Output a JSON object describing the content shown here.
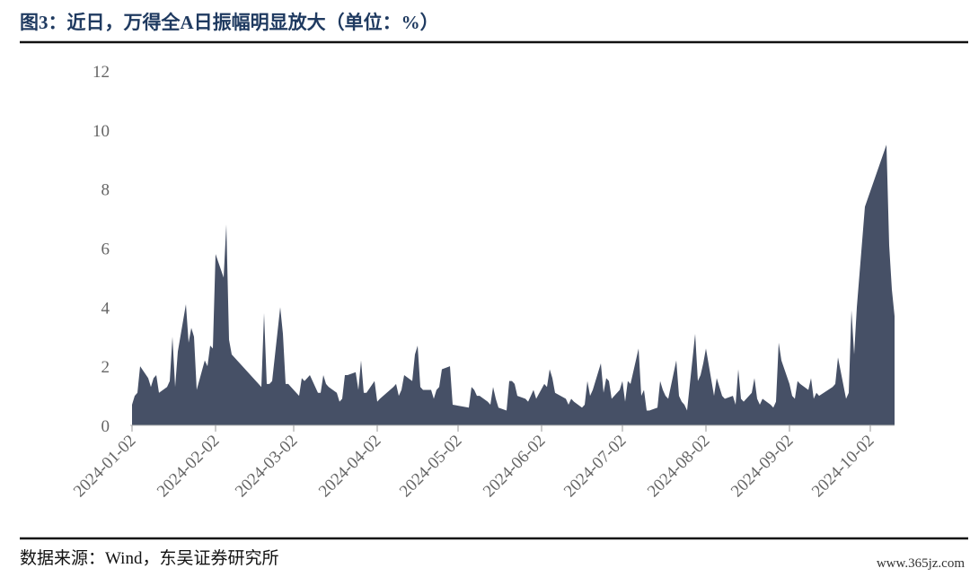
{
  "chart_data": {
    "type": "area",
    "title": "图3：近日，万得全A日振幅明显放大（单位：%）",
    "source": "数据来源：Wind，东吴证券研究所",
    "watermark": "www.365jz.com",
    "color": "#465066",
    "x": [
      "2024-01-02",
      "2024-01-03",
      "2024-01-04",
      "2024-01-05",
      "2024-01-08",
      "2024-01-09",
      "2024-01-10",
      "2024-01-11",
      "2024-01-12",
      "2024-01-15",
      "2024-01-16",
      "2024-01-17",
      "2024-01-18",
      "2024-01-19",
      "2024-01-22",
      "2024-01-23",
      "2024-01-24",
      "2024-01-25",
      "2024-01-26",
      "2024-01-29",
      "2024-01-30",
      "2024-01-31",
      "2024-02-01",
      "2024-02-02",
      "2024-02-05",
      "2024-02-06",
      "2024-02-07",
      "2024-02-08",
      "2024-02-19",
      "2024-02-20",
      "2024-02-21",
      "2024-02-22",
      "2024-02-23",
      "2024-02-26",
      "2024-02-27",
      "2024-02-28",
      "2024-02-29",
      "2024-03-01",
      "2024-03-04",
      "2024-03-05",
      "2024-03-06",
      "2024-03-07",
      "2024-03-08",
      "2024-03-11",
      "2024-03-12",
      "2024-03-13",
      "2024-03-14",
      "2024-03-15",
      "2024-03-18",
      "2024-03-19",
      "2024-03-20",
      "2024-03-21",
      "2024-03-22",
      "2024-03-25",
      "2024-03-26",
      "2024-03-27",
      "2024-03-28",
      "2024-03-29",
      "2024-04-01",
      "2024-04-02",
      "2024-04-03",
      "2024-04-08",
      "2024-04-09",
      "2024-04-10",
      "2024-04-11",
      "2024-04-12",
      "2024-04-15",
      "2024-04-16",
      "2024-04-17",
      "2024-04-18",
      "2024-04-19",
      "2024-04-22",
      "2024-04-23",
      "2024-04-24",
      "2024-04-25",
      "2024-04-26",
      "2024-04-29",
      "2024-04-30",
      "2024-05-06",
      "2024-05-07",
      "2024-05-08",
      "2024-05-09",
      "2024-05-10",
      "2024-05-13",
      "2024-05-14",
      "2024-05-15",
      "2024-05-16",
      "2024-05-17",
      "2024-05-20",
      "2024-05-21",
      "2024-05-22",
      "2024-05-23",
      "2024-05-24",
      "2024-05-27",
      "2024-05-28",
      "2024-05-29",
      "2024-05-30",
      "2024-05-31",
      "2024-06-03",
      "2024-06-04",
      "2024-06-05",
      "2024-06-06",
      "2024-06-07",
      "2024-06-11",
      "2024-06-12",
      "2024-06-13",
      "2024-06-14",
      "2024-06-17",
      "2024-06-18",
      "2024-06-19",
      "2024-06-20",
      "2024-06-21",
      "2024-06-24",
      "2024-06-25",
      "2024-06-26",
      "2024-06-27",
      "2024-06-28",
      "2024-07-01",
      "2024-07-02",
      "2024-07-03",
      "2024-07-04",
      "2024-07-05",
      "2024-07-08",
      "2024-07-09",
      "2024-07-10",
      "2024-07-11",
      "2024-07-12",
      "2024-07-15",
      "2024-07-16",
      "2024-07-17",
      "2024-07-18",
      "2024-07-19",
      "2024-07-22",
      "2024-07-23",
      "2024-07-24",
      "2024-07-25",
      "2024-07-26",
      "2024-07-29",
      "2024-07-30",
      "2024-07-31",
      "2024-08-01",
      "2024-08-02",
      "2024-08-05",
      "2024-08-06",
      "2024-08-07",
      "2024-08-08",
      "2024-08-09",
      "2024-08-12",
      "2024-08-13",
      "2024-08-14",
      "2024-08-15",
      "2024-08-16",
      "2024-08-19",
      "2024-08-20",
      "2024-08-21",
      "2024-08-22",
      "2024-08-23",
      "2024-08-26",
      "2024-08-27",
      "2024-08-28",
      "2024-08-29",
      "2024-08-30",
      "2024-09-02",
      "2024-09-03",
      "2024-09-04",
      "2024-09-05",
      "2024-09-06",
      "2024-09-09",
      "2024-09-10",
      "2024-09-11",
      "2024-09-12",
      "2024-09-13",
      "2024-09-18",
      "2024-09-19",
      "2024-09-20",
      "2024-09-23",
      "2024-09-24",
      "2024-09-25",
      "2024-09-26",
      "2024-09-27",
      "2024-09-30",
      "2024-10-08",
      "2024-10-09",
      "2024-10-10",
      "2024-10-11"
    ],
    "values": [
      0.7,
      1.0,
      1.1,
      2.0,
      1.6,
      1.3,
      1.6,
      1.7,
      1.1,
      1.3,
      1.5,
      3.0,
      1.3,
      2.5,
      4.1,
      2.8,
      3.3,
      3.0,
      1.2,
      2.2,
      2.0,
      2.7,
      2.6,
      5.8,
      5.0,
      6.8,
      2.9,
      2.4,
      1.3,
      3.8,
      1.4,
      1.4,
      1.5,
      4.0,
      3.1,
      1.4,
      1.4,
      1.3,
      1.0,
      1.6,
      1.5,
      1.6,
      1.7,
      1.1,
      1.1,
      1.7,
      1.4,
      1.3,
      1.1,
      0.8,
      0.9,
      1.7,
      1.7,
      1.8,
      1.2,
      2.2,
      1.1,
      1.1,
      1.5,
      0.8,
      0.9,
      1.3,
      1.4,
      1.0,
      1.2,
      1.7,
      1.5,
      2.4,
      2.7,
      1.3,
      1.2,
      1.2,
      0.9,
      1.2,
      1.3,
      1.9,
      2.0,
      0.7,
      0.6,
      1.3,
      1.2,
      1.0,
      1.0,
      0.8,
      0.7,
      1.3,
      0.9,
      0.6,
      0.5,
      1.5,
      1.5,
      1.4,
      1.0,
      0.9,
      0.8,
      1.0,
      1.2,
      0.9,
      1.4,
      1.3,
      1.9,
      1.6,
      1.1,
      0.9,
      0.7,
      0.9,
      0.8,
      0.6,
      0.7,
      1.5,
      1.0,
      1.2,
      2.1,
      1.1,
      1.6,
      1.5,
      0.9,
      1.2,
      1.5,
      0.8,
      1.5,
      1.4,
      2.6,
      1.0,
      1.2,
      0.5,
      0.5,
      0.6,
      1.5,
      1.2,
      1.0,
      0.9,
      2.2,
      1.0,
      0.8,
      0.7,
      0.5,
      3.1,
      1.5,
      1.7,
      2.1,
      2.6,
      1.0,
      1.6,
      1.3,
      1.0,
      0.9,
      1.0,
      0.7,
      1.9,
      0.9,
      0.8,
      1.1,
      1.6,
      0.9,
      0.7,
      0.9,
      0.7,
      0.6,
      0.8,
      2.8,
      2.2,
      1.4,
      1.0,
      0.9,
      1.5,
      1.4,
      1.2,
      1.6,
      0.9,
      1.1,
      1.0,
      1.3,
      1.4,
      2.3,
      0.9,
      1.1,
      3.9,
      2.4,
      4.0,
      7.4,
      9.5,
      6.1,
      4.6,
      3.7
    ],
    "xlim": [
      "2024-01-02",
      "2024-10-11"
    ],
    "xticks": [
      "2024-01-02",
      "2024-02-02",
      "2024-03-02",
      "2024-04-02",
      "2024-05-02",
      "2024-06-02",
      "2024-07-02",
      "2024-08-02",
      "2024-09-02",
      "2024-10-02"
    ],
    "ylim": [
      0,
      12
    ],
    "yticks": [
      0,
      2,
      4,
      6,
      8,
      10,
      12
    ]
  }
}
